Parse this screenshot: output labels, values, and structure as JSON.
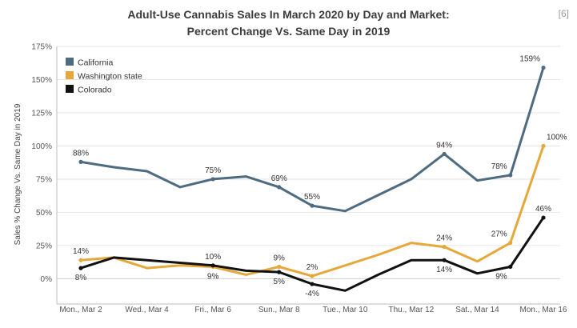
{
  "ref": "[6]",
  "chart_data": {
    "type": "line",
    "title_line1": "Adult-Use Cannabis Sales In March 2020 by Day and Market:",
    "title_line2": "Percent Change Vs. Same Day in 2019",
    "ylabel": "Sales % Change Vs. Same Day in 2019",
    "xlabel": "",
    "ylim": [
      -0.1,
      1.75
    ],
    "yticks": [
      0,
      0.25,
      0.5,
      0.75,
      1.0,
      1.25,
      1.5,
      1.75
    ],
    "ytick_labels": [
      "0%",
      "25%",
      "50%",
      "75%",
      "100%",
      "125%",
      "150%",
      "175%"
    ],
    "x": [
      "Mar 2",
      "Mar 3",
      "Mar 4",
      "Mar 5",
      "Mar 6",
      "Mar 7",
      "Mar 8",
      "Mar 9",
      "Mar 10",
      "Mar 11",
      "Mar 12",
      "Mar 13",
      "Mar 14",
      "Mar 15",
      "Mar 16"
    ],
    "xtick_labels": [
      {
        "index": 0,
        "label": "Mon., Mar 2"
      },
      {
        "index": 2,
        "label": "Wed., Mar 4"
      },
      {
        "index": 4,
        "label": "Fri., Mar 6"
      },
      {
        "index": 6,
        "label": "Sun., Mar 8"
      },
      {
        "index": 8,
        "label": "Tue., Mar 10"
      },
      {
        "index": 10,
        "label": "Thu., Mar 12"
      },
      {
        "index": 12,
        "label": "Sat., Mar 14"
      },
      {
        "index": 14,
        "label": "Mon., Mar 16"
      }
    ],
    "grid": "horizontal",
    "legend_position": "top-left",
    "series": [
      {
        "name": "California",
        "color": "#4e6b80",
        "values": [
          0.88,
          0.84,
          0.81,
          0.69,
          0.75,
          0.77,
          0.69,
          0.55,
          0.51,
          0.63,
          0.75,
          0.94,
          0.74,
          0.78,
          1.59
        ],
        "labels": [
          {
            "index": 0,
            "text": "88%",
            "pos": "above"
          },
          {
            "index": 4,
            "text": "75%",
            "pos": "above"
          },
          {
            "index": 6,
            "text": "69%",
            "pos": "above"
          },
          {
            "index": 7,
            "text": "55%",
            "pos": "above"
          },
          {
            "index": 11,
            "text": "94%",
            "pos": "above"
          },
          {
            "index": 13,
            "text": "78%",
            "pos": "above-left"
          },
          {
            "index": 14,
            "text": "159%",
            "pos": "above-left"
          }
        ]
      },
      {
        "name": "Washington state",
        "color": "#e6a83a",
        "values": [
          0.14,
          0.16,
          0.08,
          0.1,
          0.09,
          0.03,
          0.09,
          0.02,
          0.1,
          0.18,
          0.27,
          0.24,
          0.13,
          0.27,
          1.0
        ],
        "labels": [
          {
            "index": 0,
            "text": "14%",
            "pos": "above"
          },
          {
            "index": 4,
            "text": "9%",
            "pos": "below"
          },
          {
            "index": 6,
            "text": "9%",
            "pos": "above"
          },
          {
            "index": 7,
            "text": "2%",
            "pos": "above"
          },
          {
            "index": 11,
            "text": "24%",
            "pos": "above"
          },
          {
            "index": 13,
            "text": "27%",
            "pos": "above-left"
          },
          {
            "index": 14,
            "text": "100%",
            "pos": "above-right"
          }
        ]
      },
      {
        "name": "Colorado",
        "color": "#111111",
        "values": [
          0.08,
          0.16,
          0.14,
          0.12,
          0.1,
          0.06,
          0.05,
          -0.04,
          -0.09,
          0.03,
          0.14,
          0.14,
          0.04,
          0.09,
          0.46
        ],
        "labels": [
          {
            "index": 0,
            "text": "8%",
            "pos": "below"
          },
          {
            "index": 4,
            "text": "10%",
            "pos": "above"
          },
          {
            "index": 6,
            "text": "5%",
            "pos": "below"
          },
          {
            "index": 7,
            "text": "-4%",
            "pos": "below"
          },
          {
            "index": 11,
            "text": "14%",
            "pos": "below"
          },
          {
            "index": 13,
            "text": "9%",
            "pos": "below-left"
          },
          {
            "index": 14,
            "text": "46%",
            "pos": "above"
          }
        ]
      }
    ]
  }
}
